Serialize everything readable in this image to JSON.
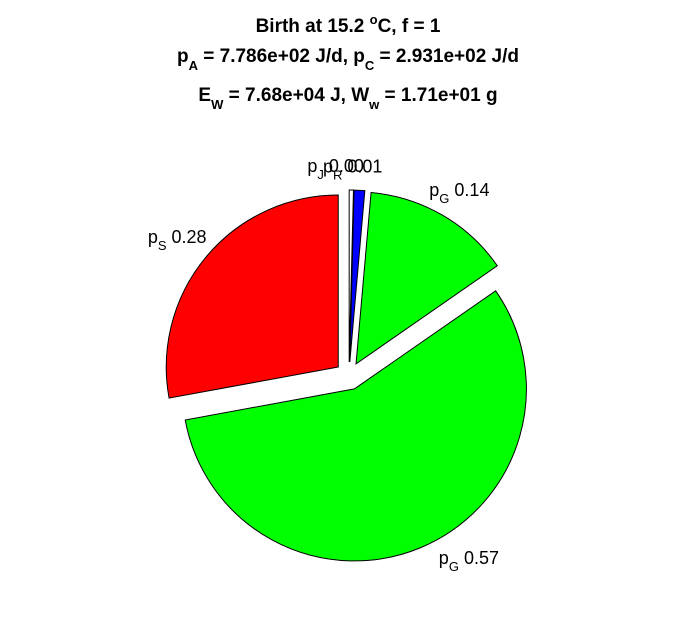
{
  "chart_data": {
    "type": "pie",
    "title_lines": [
      {
        "parts": [
          {
            "text": "Birth at 15.2 ",
            "style": "n"
          },
          {
            "text": "o",
            "style": "sup"
          },
          {
            "text": "C, f = 1",
            "style": "n"
          }
        ]
      },
      {
        "parts": [
          {
            "text": "p",
            "style": "n"
          },
          {
            "text": "A",
            "style": "sub"
          },
          {
            "text": " = 7.786e+02 J/d, p",
            "style": "n"
          },
          {
            "text": "C",
            "style": "sub"
          },
          {
            "text": " = 2.931e+02 J/d",
            "style": "n"
          }
        ]
      },
      {
        "parts": [
          {
            "text": "E",
            "style": "n"
          },
          {
            "text": "W",
            "style": "sub"
          },
          {
            "text": " = 7.68e+04 J, W",
            "style": "n"
          },
          {
            "text": "w",
            "style": "sub"
          },
          {
            "text": " = 1.71e+01 g",
            "style": "n"
          }
        ]
      }
    ],
    "slices": [
      {
        "label": "p",
        "sub": "J",
        "value_text": "0.00",
        "value": 0.004,
        "color": "#ffffff"
      },
      {
        "label": "p",
        "sub": "R",
        "value_text": "0.01",
        "value": 0.01,
        "color": "#0000ff"
      },
      {
        "label": "p",
        "sub": "G",
        "value_text": "0.14",
        "value": 0.14,
        "color": "#00ff00"
      },
      {
        "label": "p",
        "sub": "G",
        "value_text": "0.57",
        "value": 0.57,
        "color": "#00ff00"
      },
      {
        "label": "p",
        "sub": "S",
        "value_text": "0.28",
        "value": 0.28,
        "color": "#ff0000"
      }
    ],
    "start": "12 o'clock",
    "direction": "clockwise",
    "exploded": true,
    "legend": "none"
  }
}
